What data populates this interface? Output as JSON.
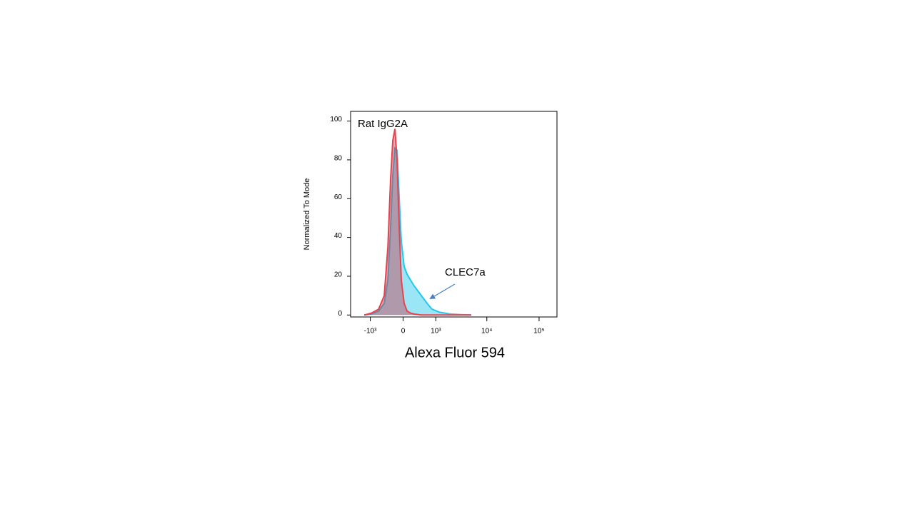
{
  "chart_data": {
    "type": "histogram-overlay",
    "x_label": "Alexa Fluor 594",
    "y_label": "Normalized To Mode",
    "xscale": "biexponential",
    "xlim": [
      -2500,
      220000
    ],
    "ylim": [
      -1,
      105
    ],
    "xticks": [
      {
        "value": -1000,
        "label": "-10³"
      },
      0,
      {
        "value": 1000,
        "label": "10³"
      },
      {
        "value": 10000,
        "label": "10⁴"
      },
      {
        "value": 100000,
        "label": "10⁵"
      }
    ],
    "yticks": [
      0,
      20,
      40,
      60,
      80,
      100
    ],
    "x": [
      -1340,
      -950,
      -650,
      -465,
      -360,
      -290,
      -235,
      -184,
      -135,
      -86,
      -39,
      24,
      88,
      169,
      254,
      447,
      635,
      825,
      1175,
      1930,
      3130,
      5030
    ],
    "series": [
      {
        "name": "CLEC7a",
        "color": "#22c8ea",
        "values": [
          0,
          0.5,
          2,
          6,
          18,
          45,
          72,
          86,
          85,
          60,
          38,
          25,
          21,
          18,
          15,
          10,
          6,
          3,
          1.5,
          0.5,
          0.2,
          0
        ]
      },
      {
        "name": "Rat IgG2A",
        "color": "#e8424e",
        "values": [
          0,
          1,
          3,
          10,
          35,
          70,
          90,
          96,
          80,
          45,
          18,
          6,
          2,
          1,
          0.5,
          0,
          0,
          0,
          0,
          0,
          0,
          0
        ]
      }
    ]
  }
}
